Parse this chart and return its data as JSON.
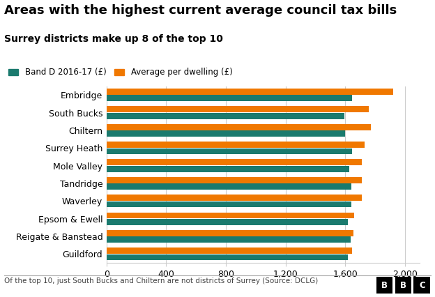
{
  "title": "Areas with the highest current average council tax bills",
  "subtitle": "Surrey districts make up 8 of the top 10",
  "footnote": "Of the top 10, just South Bucks and Chiltern are not districts of Surrey (Source: DCLG)",
  "categories": [
    "Embridge",
    "South Bucks",
    "Chiltern",
    "Surrey Heath",
    "Mole Valley",
    "Tandridge",
    "Waverley",
    "Epsom & Ewell",
    "Reigate & Banstead",
    "Guildford"
  ],
  "band_d": [
    1645,
    1595,
    1600,
    1645,
    1625,
    1640,
    1640,
    1620,
    1635,
    1620
  ],
  "avg_dwelling": [
    1920,
    1760,
    1770,
    1730,
    1710,
    1710,
    1710,
    1660,
    1655,
    1645
  ],
  "band_d_color": "#1a7a6e",
  "avg_dwelling_color": "#f07800",
  "background_color": "#ffffff",
  "legend_label_band_d": "Band D 2016-17 (£)",
  "legend_label_avg": "Average per dwelling (£)",
  "xlim": [
    0,
    2100
  ],
  "xticks": [
    0,
    400,
    800,
    1200,
    1600,
    2000
  ],
  "xtick_labels": [
    "0",
    "400",
    "800",
    "1,200",
    "1,600",
    "2,000"
  ],
  "title_fontsize": 13,
  "subtitle_fontsize": 10,
  "label_fontsize": 9,
  "tick_fontsize": 9,
  "footnote_fontsize": 7.5
}
